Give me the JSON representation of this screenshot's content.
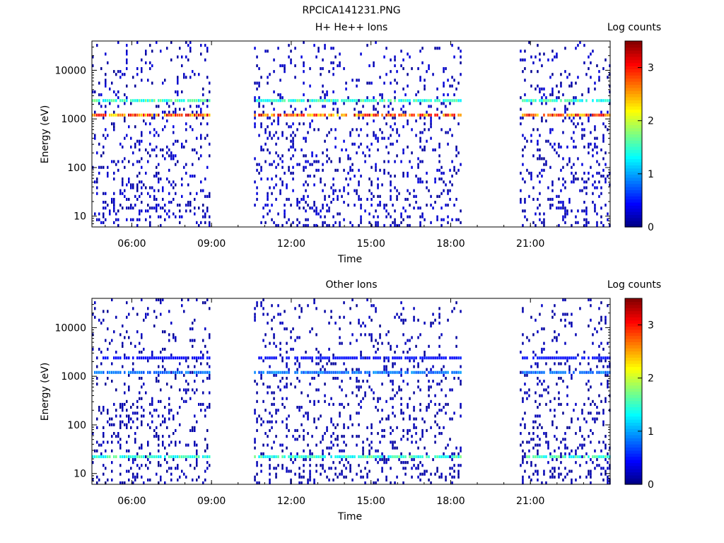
{
  "figure_title": "RPCICA141231.PNG",
  "chart_data": [
    {
      "type": "heatmap",
      "title": "H+ He++ Ions",
      "xlabel": "Time",
      "ylabel": "Energy (eV)",
      "x_ticks": [
        "06:00",
        "09:00",
        "12:00",
        "15:00",
        "18:00",
        "21:00"
      ],
      "x_range_hours": [
        4.5,
        24.0
      ],
      "y_scale": "log",
      "y_ticks": [
        "10",
        "100",
        "1000",
        "10000"
      ],
      "y_range_ev": [
        6,
        40000
      ],
      "colorbar": {
        "label": "Log counts",
        "ticks": [
          "0",
          "1",
          "2",
          "3"
        ],
        "range": [
          0,
          3.5
        ]
      },
      "colormap": [
        "#00008f",
        "#0000ff",
        "#00ffff",
        "#ffff00",
        "#ff0000",
        "#800000"
      ],
      "data_intervals_hours": [
        [
          4.5,
          8.9
        ],
        [
          10.6,
          18.4
        ],
        [
          20.6,
          24.0
        ]
      ],
      "bands": [
        {
          "energy_ev": 1200,
          "level": 3.0,
          "intervals": [
            [
              4.5,
              8.9
            ],
            [
              10.6,
              18.4
            ],
            [
              20.6,
              24.0
            ]
          ]
        },
        {
          "energy_ev": 2400,
          "level": 1.6,
          "intervals": [
            [
              4.5,
              8.9
            ],
            [
              10.6,
              18.4
            ],
            [
              20.6,
              24.0
            ]
          ]
        }
      ],
      "background_level": 0.3
    },
    {
      "type": "heatmap",
      "title": "Other Ions",
      "xlabel": "Time",
      "ylabel": "Energy (eV)",
      "x_ticks": [
        "06:00",
        "09:00",
        "12:00",
        "15:00",
        "18:00",
        "21:00"
      ],
      "x_range_hours": [
        4.5,
        24.0
      ],
      "y_scale": "log",
      "y_ticks": [
        "10",
        "100",
        "1000",
        "10000"
      ],
      "y_range_ev": [
        6,
        40000
      ],
      "colorbar": {
        "label": "Log counts",
        "ticks": [
          "0",
          "1",
          "2",
          "3"
        ],
        "range": [
          0,
          3.5
        ]
      },
      "colormap": [
        "#00008f",
        "#0000ff",
        "#00ffff",
        "#ffff00",
        "#ff0000",
        "#800000"
      ],
      "data_intervals_hours": [
        [
          4.5,
          8.9
        ],
        [
          10.6,
          18.4
        ],
        [
          20.6,
          24.0
        ]
      ],
      "bands": [
        {
          "energy_ev": 22,
          "level": 1.6,
          "intervals": [
            [
              4.5,
              8.9
            ],
            [
              10.6,
              18.4
            ],
            [
              20.6,
              24.0
            ]
          ]
        },
        {
          "energy_ev": 1200,
          "level": 0.9,
          "intervals": [
            [
              4.5,
              8.9
            ],
            [
              10.6,
              18.4
            ],
            [
              20.6,
              24.0
            ]
          ]
        },
        {
          "energy_ev": 2400,
          "level": 0.5,
          "intervals": [
            [
              4.8,
              8.9
            ],
            [
              10.6,
              18.4
            ],
            [
              20.6,
              24.0
            ]
          ]
        }
      ],
      "background_level": 0.2
    }
  ]
}
